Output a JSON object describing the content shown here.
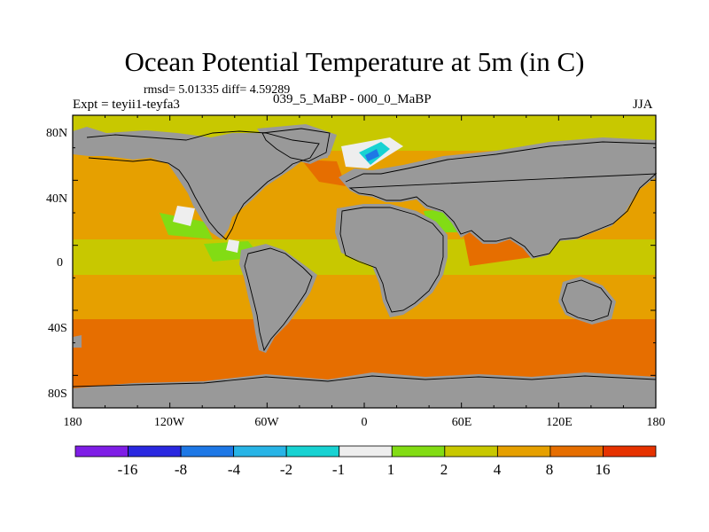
{
  "title": "Ocean Potential Temperature at 5m (in C)",
  "stats": "rmsd= 5.01335 diff= 4.59289",
  "expt": "Expt = teyii1-teyfa3",
  "center_label": "039_5_MaBP - 000_0_MaBP",
  "season": "JJA",
  "axes": {
    "y_labels": [
      "80N",
      "40N",
      "0",
      "40S",
      "80S"
    ],
    "x_labels": [
      "180",
      "120W",
      "60W",
      "0",
      "60E",
      "120E",
      "180"
    ]
  },
  "colorbar": {
    "labels": [
      "-16",
      "-8",
      "-4",
      "-2",
      "-1",
      "1",
      "2",
      "4",
      "8",
      "16"
    ],
    "colors": [
      "#7f1ee6",
      "#2a28e0",
      "#1e78e6",
      "#28b4e6",
      "#18d2d2",
      "#eeeeee",
      "#82dc14",
      "#c8c800",
      "#e6a000",
      "#e66e00",
      "#e63200"
    ]
  },
  "map_colors": {
    "land": "#999999",
    "ocean_warm": "#e6a000",
    "ocean_hot": "#e66e00",
    "ocean_mild": "#c8c800",
    "ocean_cool": "#82dc14",
    "ocean_white": "#eeeeee",
    "ocean_cyan": "#18d2d2",
    "ocean_blue": "#1e78e6"
  }
}
